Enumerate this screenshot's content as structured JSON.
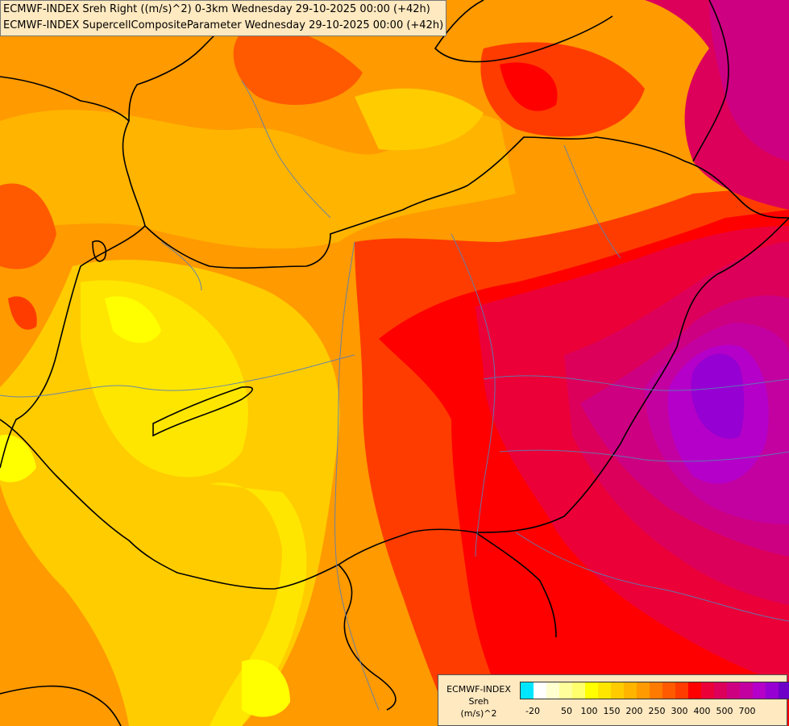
{
  "header": {
    "line1": "ECMWF-INDEX Sreh Right ((m/s)^2) 0-3km Wednesday 29-10-2025 00:00 (+42h)",
    "line2": "ECMWF-INDEX SupercellCompositeParameter Wednesday 29-10-2025 00:00 (+42h)"
  },
  "legend": {
    "title1": "ECMWF-INDEX",
    "title2": "Sreh",
    "title3": "(m/s)^2",
    "colors": [
      "#00e6ff",
      "#ffffff",
      "#ffffd0",
      "#ffff9c",
      "#ffff6e",
      "#ffff00",
      "#ffe600",
      "#ffcc00",
      "#ffb400",
      "#ff9a00",
      "#ff7a00",
      "#ff5a00",
      "#ff3c00",
      "#ff0000",
      "#eb0038",
      "#dc005a",
      "#cd0082",
      "#c300a0",
      "#b400c8",
      "#9600d2",
      "#6e00c8",
      "#4b00aa",
      "#001e6e"
    ],
    "ticks": [
      "-20",
      "50",
      "100",
      "150",
      "200",
      "250",
      "300",
      "400",
      "500",
      "700"
    ]
  },
  "colors": {
    "background": "#ff9a00",
    "border_line": "#000000",
    "river_line": "#5a7fb4"
  }
}
